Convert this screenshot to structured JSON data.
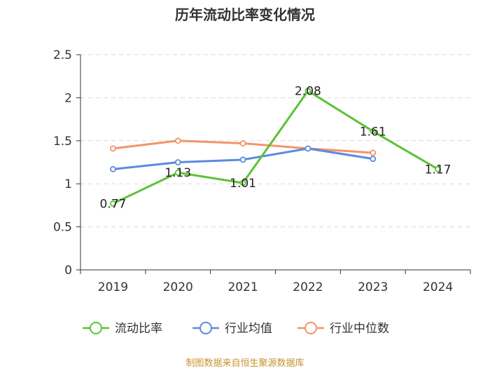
{
  "chart_data": {
    "type": "line",
    "title": "历年流动比率变化情况",
    "categories": [
      "2019",
      "2020",
      "2021",
      "2022",
      "2023",
      "2024"
    ],
    "ylim": [
      0,
      2.5
    ],
    "yticks": [
      0,
      0.5,
      1,
      1.5,
      2,
      2.5
    ],
    "ytick_labels": [
      "0",
      "0.5",
      "1",
      "1.5",
      "2",
      "2.5"
    ],
    "grid": true,
    "legend_position": "bottom",
    "series": [
      {
        "name": "流动比率",
        "color": "#5dc236",
        "values": [
          0.77,
          1.13,
          1.01,
          2.08,
          1.61,
          1.17
        ],
        "labels": [
          "0.77",
          "1.13",
          "1.01",
          "2.08",
          "1.61",
          "1.17"
        ]
      },
      {
        "name": "行业均值",
        "color": "#5b8ae0",
        "values": [
          1.17,
          1.25,
          1.28,
          1.41,
          1.29,
          null
        ]
      },
      {
        "name": "行业中位数",
        "color": "#f5936b",
        "values": [
          1.41,
          1.5,
          1.47,
          1.41,
          1.36,
          null
        ]
      }
    ],
    "source": "制图数据来自恒生聚源数据库",
    "source_color": "#c8922e"
  }
}
